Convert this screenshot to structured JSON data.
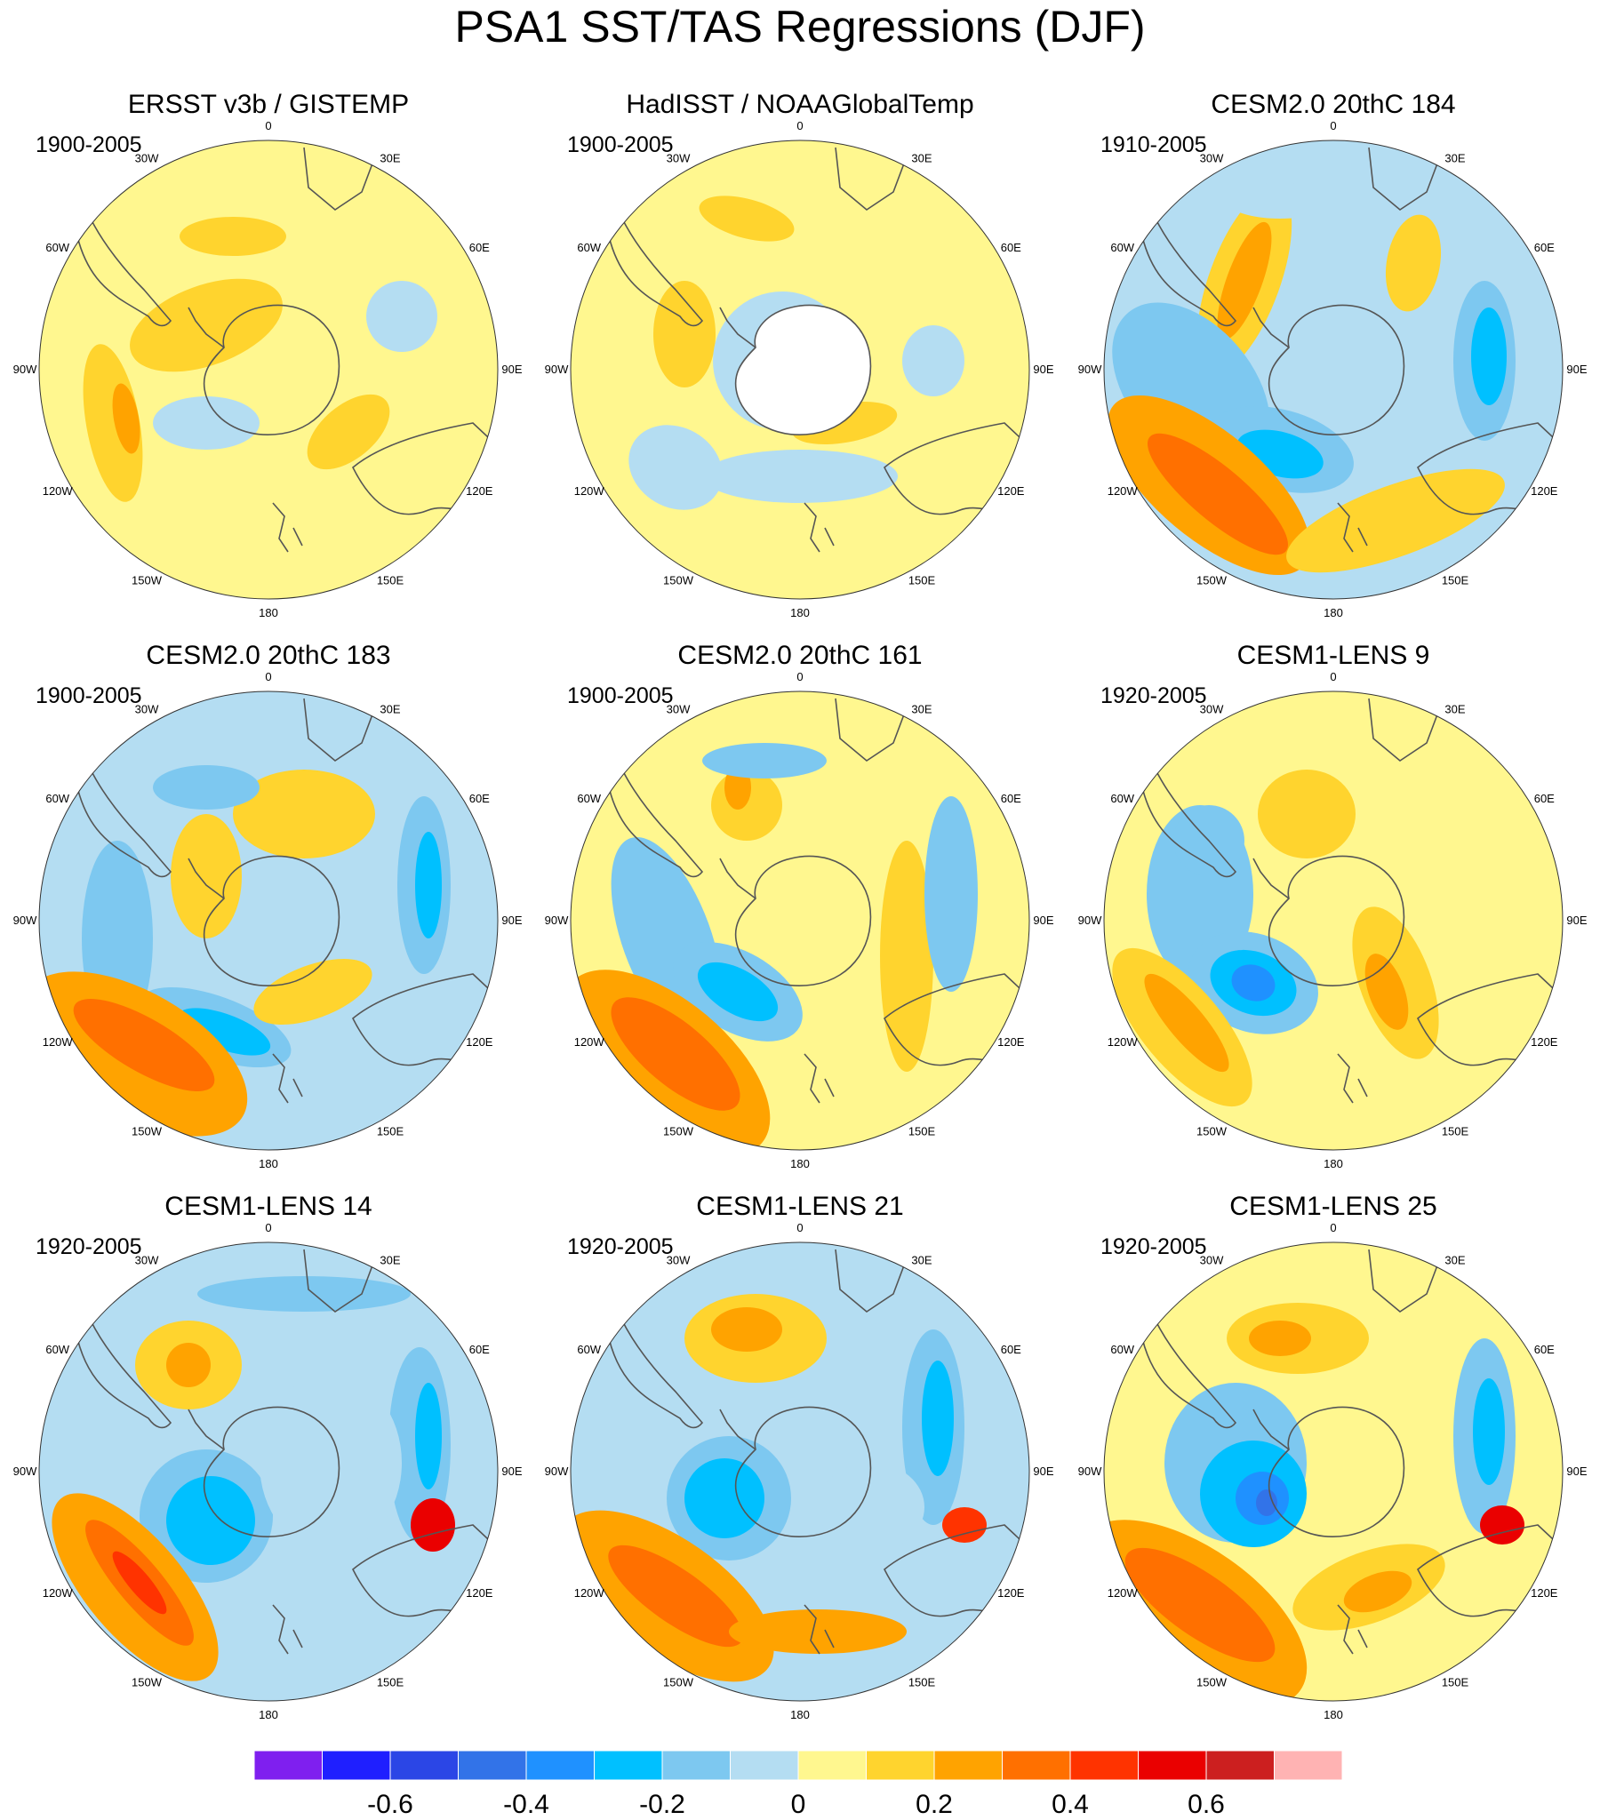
{
  "title": "PSA1 SST/TAS Regressions (DJF)",
  "longitude_labels": [
    "0",
    "30E",
    "60E",
    "90E",
    "120E",
    "150E",
    "180",
    "150W",
    "120W",
    "90W",
    "60W",
    "30W"
  ],
  "panels": [
    {
      "title": "ERSST v3b / GISTEMP",
      "period": "1900-2005"
    },
    {
      "title": "HadISST / NOAAGlobalTemp",
      "period": "1900-2005"
    },
    {
      "title": "CESM2.0 20thC 184",
      "period": "1910-2005"
    },
    {
      "title": "CESM2.0 20thC 183",
      "period": "1900-2005"
    },
    {
      "title": "CESM2.0 20thC 161",
      "period": "1900-2005"
    },
    {
      "title": "CESM1-LENS 9",
      "period": "1920-2005"
    },
    {
      "title": "CESM1-LENS 14",
      "period": "1920-2005"
    },
    {
      "title": "CESM1-LENS 21",
      "period": "1920-2005"
    },
    {
      "title": "CESM1-LENS 25",
      "period": "1920-2005"
    }
  ],
  "colorbar": {
    "colors": [
      "#7f1fef",
      "#1f1fff",
      "#2b46e6",
      "#3273e8",
      "#1f91ff",
      "#00c0ff",
      "#7dc8f0",
      "#b4ddf2",
      "#fff78f",
      "#ffd42e",
      "#ffa300",
      "#ff7000",
      "#ff3300",
      "#ea0000",
      "#cc1f1f",
      "#ffb3b3"
    ],
    "tick_labels": [
      "-0.6",
      "-0.4",
      "-0.2",
      "0",
      "0.2",
      "0.4",
      "0.6"
    ]
  }
}
